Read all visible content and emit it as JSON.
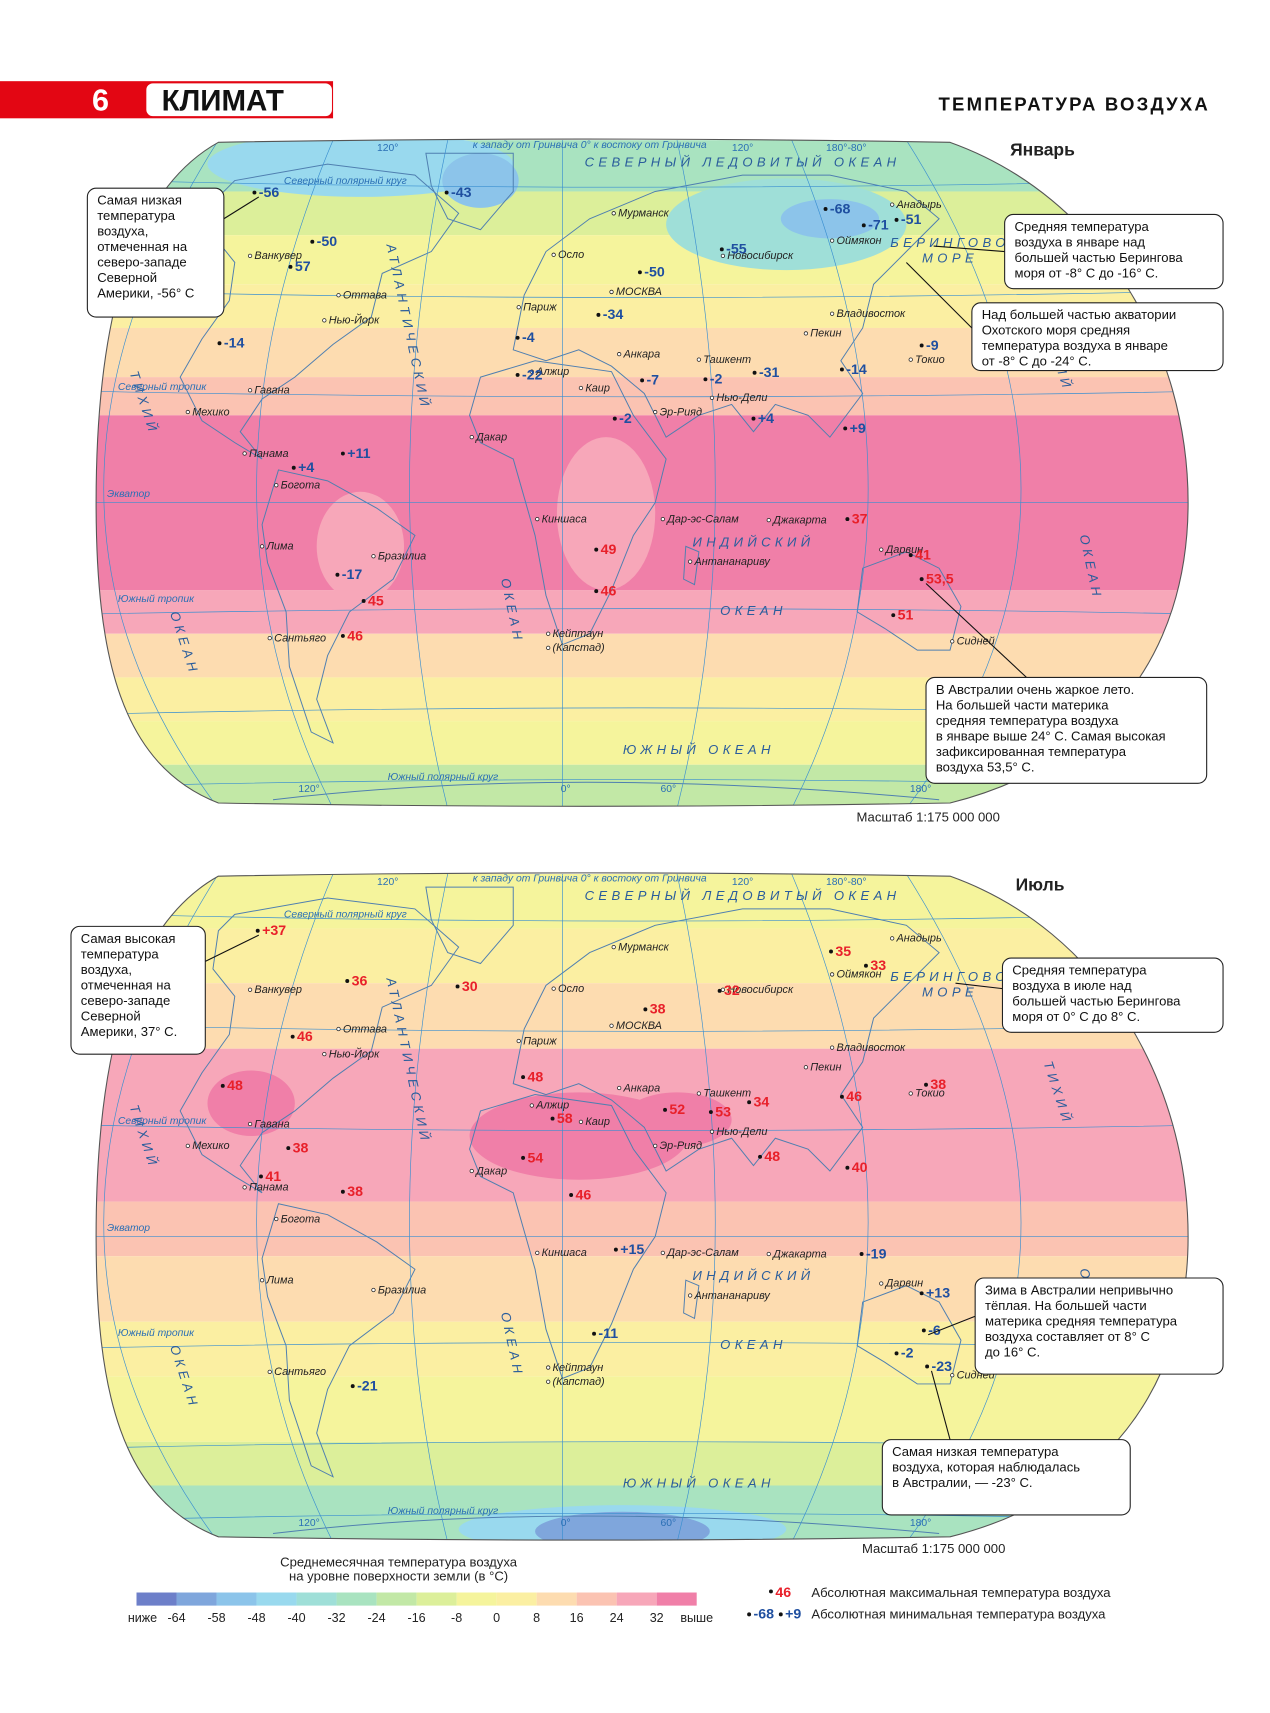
{
  "header": {
    "number": "6",
    "title": "КЛИМАТ",
    "section": "ТЕМПЕРАТУРА ВОЗДУХА"
  },
  "max_color": "#e8202a",
  "min_color": "#1f4fa0",
  "place_labels": [
    "Ванкувер",
    "Оттава",
    "Нью-Йорк",
    "Гавана",
    "Мехико",
    "Панама",
    "Богота",
    "Лима",
    "Бразилиа",
    "Сантьяго",
    "Осло",
    "Мурманск",
    "МОСКВА",
    "Париж",
    "Анкара",
    "Алжир",
    "Каир",
    "Эр-Рияд",
    "Нью-Дели",
    "Ташкент",
    "Новосибирск",
    "Оймякон",
    "Анадырь",
    "Владивосток",
    "Пекин",
    "Токио",
    "Дакар",
    "Киншаса",
    "Дар-эс-Салам",
    "Антананариву",
    "Джакарта",
    "Дарвин",
    "Сидней",
    "Кейптаун",
    "(Капстад)"
  ],
  "ocean_labels": [
    "СЕВЕРНЫЙ ЛЕДОВИТЫЙ ОКЕАН",
    "АТЛАНТИЧЕСКИЙ",
    "ОКЕАН",
    "ТИХИЙ",
    "ОКЕАН",
    "ТИХИЙ",
    "ОКЕАН",
    "ИНДИЙСКИЙ",
    "ОКЕАН",
    "ЮЖНЫЙ ОКЕАН",
    "БЕРИНГОВО",
    "МОРЕ"
  ],
  "line_labels": [
    "Северный полярный круг",
    "Северный тропик",
    "Экватор",
    "Южный тропик",
    "Южный полярный круг",
    "к западу от Гринвича 0° к востоку от Гринвича"
  ],
  "degree_labels": [
    "120°",
    "120°",
    "180°-80°",
    "120°",
    "0°",
    "60°",
    "180°"
  ],
  "maps": [
    {
      "title": "Январь",
      "scale": "Масштаб 1:175 000 000",
      "min_temps": [
        "-56",
        "-43",
        "-50",
        "57",
        "-14",
        "-4",
        "-22",
        "-34",
        "-50",
        "-55",
        "-68",
        "-71",
        "-51",
        "-9",
        "-14",
        "-31",
        "-2",
        "-7",
        "-2",
        "+4",
        "+9",
        "+11",
        "+4",
        "-17"
      ],
      "max_temps": [
        "49",
        "46",
        "45",
        "46",
        "37",
        "41",
        "53,5",
        "51"
      ],
      "callouts": [
        {
          "lines": [
            "Самая низкая",
            "температура",
            "воздуха,",
            "отмеченная на",
            "северо-западе",
            "Северной",
            "Америки, -56° С"
          ]
        },
        {
          "lines": [
            "Средняя температура",
            "воздуха в январе над",
            "большей частью Берингова",
            "моря от -8° С до -16° С."
          ]
        },
        {
          "lines": [
            "Над большей частью акватории",
            "Охотского моря средняя",
            "температура воздуха в январе",
            "от -8° С до -24° С."
          ]
        },
        {
          "lines": [
            "В Австралии очень жаркое лето.",
            "На большей части материка",
            "средняя температура воздуха",
            "в январе выше 24° С. Самая высокая",
            "зафиксированная температура",
            "воздуха 53,5° С."
          ]
        }
      ]
    },
    {
      "title": "Июль",
      "scale": "Масштаб 1:175 000 000",
      "min_temps": [
        "+15",
        "-19",
        "+13",
        "-6",
        "-2",
        "-23",
        "-11",
        "-21"
      ],
      "max_temps": [
        "+37",
        "36",
        "30",
        "46",
        "48",
        "48",
        "58",
        "54",
        "46",
        "38",
        "32",
        "35",
        "33",
        "52",
        "53",
        "34",
        "48",
        "46",
        "38",
        "40",
        "38",
        "41",
        "38"
      ],
      "callouts": [
        {
          "lines": [
            "Самая высокая",
            "температура",
            "воздуха,",
            "отмеченная на",
            "северо-западе",
            "Северной",
            "Америки, 37° С."
          ]
        },
        {
          "lines": [
            "Средняя температура",
            "воздуха в июле над",
            "большей частью Берингова",
            "моря от 0° С до 8° С."
          ]
        },
        {
          "lines": [
            "Зима в Австралии непривычно",
            "тёплая. На большей части",
            "материка средняя температура",
            "воздуха составляет от 8° С",
            "до 16° С."
          ]
        },
        {
          "lines": [
            "Самая низкая температура",
            "воздуха, которая наблюдалась",
            "в Австралии, — -23° С."
          ]
        }
      ]
    }
  ],
  "legend": {
    "title": [
      "Среднемесячная температура воздуха",
      "на уровне поверхности земли (в °С)"
    ],
    "colors": [
      "#6d7fc9",
      "#7fa6dc",
      "#8cc4ea",
      "#99d9ee",
      "#9fdfd8",
      "#a9e3c0",
      "#c2e8a6",
      "#dcef9a",
      "#f5f49c",
      "#fbefa2",
      "#fddcb0",
      "#fbc3b2",
      "#f7a7b9",
      "#f07fa8"
    ],
    "labels": [
      "ниже",
      "-64",
      "-58",
      "-48",
      "-40",
      "-32",
      "-24",
      "-16",
      "-8",
      "0",
      "8",
      "16",
      "24",
      "32",
      "выше"
    ],
    "max_sample": "46",
    "max_text": "Абсолютная максимальная температура воздуха",
    "min_samples": [
      "-68",
      "+9"
    ],
    "min_text": "Абсолютная минимальная температура воздуха"
  }
}
